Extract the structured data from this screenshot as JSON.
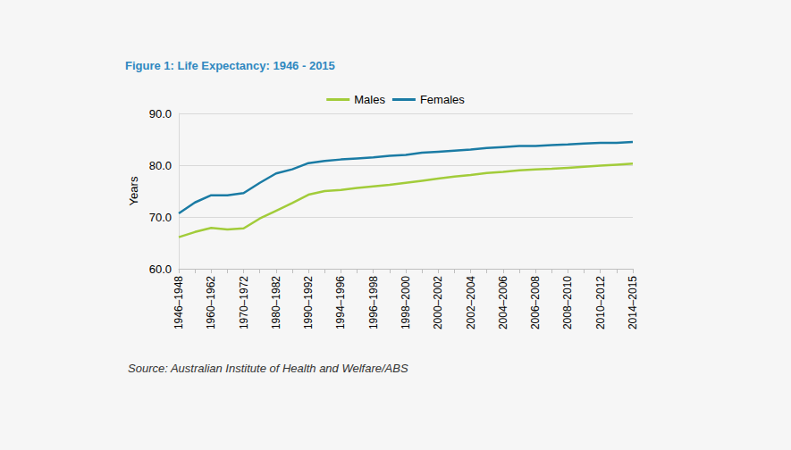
{
  "chart_data": {
    "type": "line",
    "title": "Figure 1: Life Expectancy: 1946 - 2015",
    "source": "Source: Australian Institute of Health and Welfare/ABS",
    "y_label": "Years",
    "categories": [
      "1946–1948",
      null,
      "1960–1962",
      null,
      "1970–1972",
      null,
      "1980–1982",
      null,
      "1990–1992",
      null,
      "1994–1996",
      null,
      "1996–1998",
      null,
      "1998–2000",
      null,
      "2000–2002",
      null,
      "2002–2004",
      null,
      "2004–2006",
      null,
      "2006–2008",
      null,
      "2008–2010",
      null,
      "2010–2012",
      null,
      "2014–2015"
    ],
    "series": [
      {
        "name": "Males",
        "color": "#a2cc3a",
        "values": [
          66.1,
          67.1,
          67.9,
          67.6,
          67.8,
          69.7,
          71.2,
          72.7,
          74.3,
          75.0,
          75.2,
          75.6,
          75.9,
          76.2,
          76.6,
          77.0,
          77.4,
          77.8,
          78.1,
          78.5,
          78.7,
          79.0,
          79.2,
          79.3,
          79.5,
          79.7,
          79.9,
          80.1,
          80.3
        ]
      },
      {
        "name": "Females",
        "color": "#1a7ba4",
        "values": [
          70.7,
          72.8,
          74.2,
          74.2,
          74.6,
          76.6,
          78.4,
          79.2,
          80.4,
          80.8,
          81.1,
          81.3,
          81.5,
          81.8,
          82.0,
          82.4,
          82.6,
          82.8,
          83.0,
          83.3,
          83.5,
          83.7,
          83.7,
          83.9,
          84.0,
          84.2,
          84.3,
          84.3,
          84.5
        ]
      }
    ],
    "ylim": [
      60,
      90
    ],
    "yticks": [
      {
        "value": 60,
        "label": "60.0"
      },
      {
        "value": 70,
        "label": "70.0"
      },
      {
        "value": 80,
        "label": "80.0"
      },
      {
        "value": 90,
        "label": "90.0"
      }
    ],
    "grid": true,
    "legend": "top"
  }
}
